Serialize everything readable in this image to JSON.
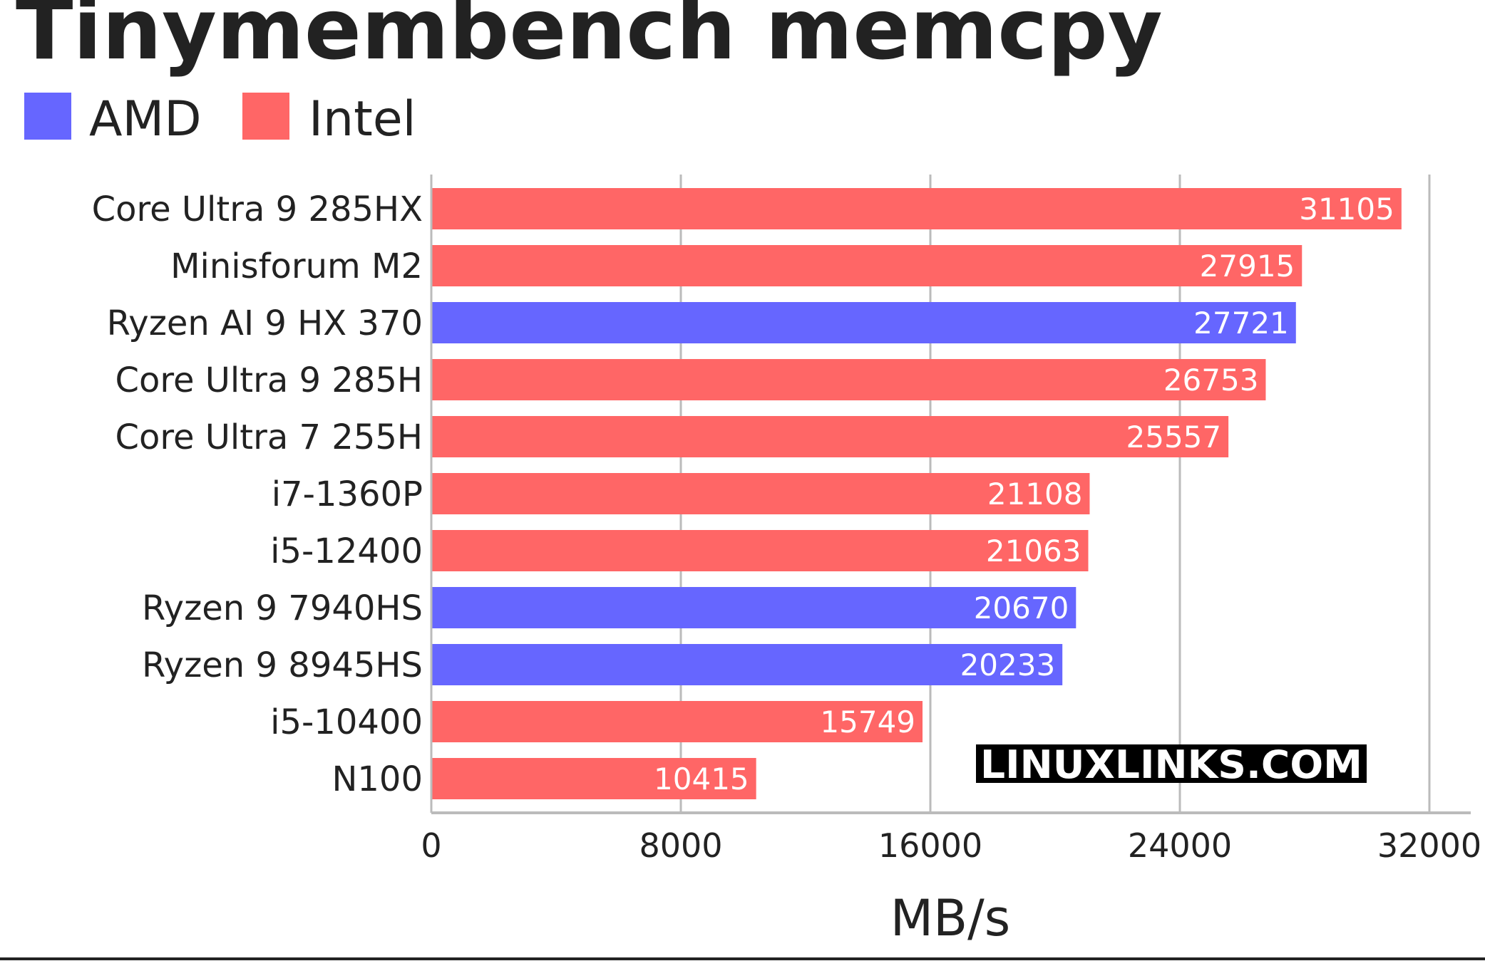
{
  "chart_data": {
    "type": "bar",
    "orientation": "horizontal",
    "title": "Tinymembench memcpy",
    "xlabel": "MB/s",
    "ylabel": "",
    "xlim": [
      0,
      32000
    ],
    "xticks": [
      "0",
      "8000",
      "16000",
      "24000",
      "32000"
    ],
    "grid": true,
    "legend_position": "top-left",
    "legend": [
      {
        "name": "AMD",
        "color": "#6666ff"
      },
      {
        "name": "Intel",
        "color": "#ff6666"
      }
    ],
    "categories": [
      "Core Ultra 9 285HX",
      "Minisforum M2",
      "Ryzen AI 9 HX 370",
      "Core Ultra 9 285H",
      "Core Ultra 7 255H",
      "i7-1360P",
      "i5-12400",
      "Ryzen 9 7940HS",
      "Ryzen 9 8945HS",
      "i5-10400",
      "N100"
    ],
    "values": [
      31105,
      27915,
      27721,
      26753,
      25557,
      21108,
      21063,
      20670,
      20233,
      15749,
      10415
    ],
    "value_labels": [
      "31105",
      "27915",
      "27721",
      "26753",
      "25557",
      "21108",
      "21063",
      "20670",
      "20233",
      "15749",
      "10415"
    ],
    "bar_vendor": [
      "Intel",
      "Intel",
      "AMD",
      "Intel",
      "Intel",
      "Intel",
      "Intel",
      "AMD",
      "AMD",
      "Intel",
      "Intel"
    ]
  },
  "watermark": "LINUXLINKS.COM",
  "colors": {
    "amd": "#6666ff",
    "intel": "#ff6666",
    "grid": "#bbbbbb",
    "text": "#222222",
    "watermark_bg": "#000000"
  }
}
